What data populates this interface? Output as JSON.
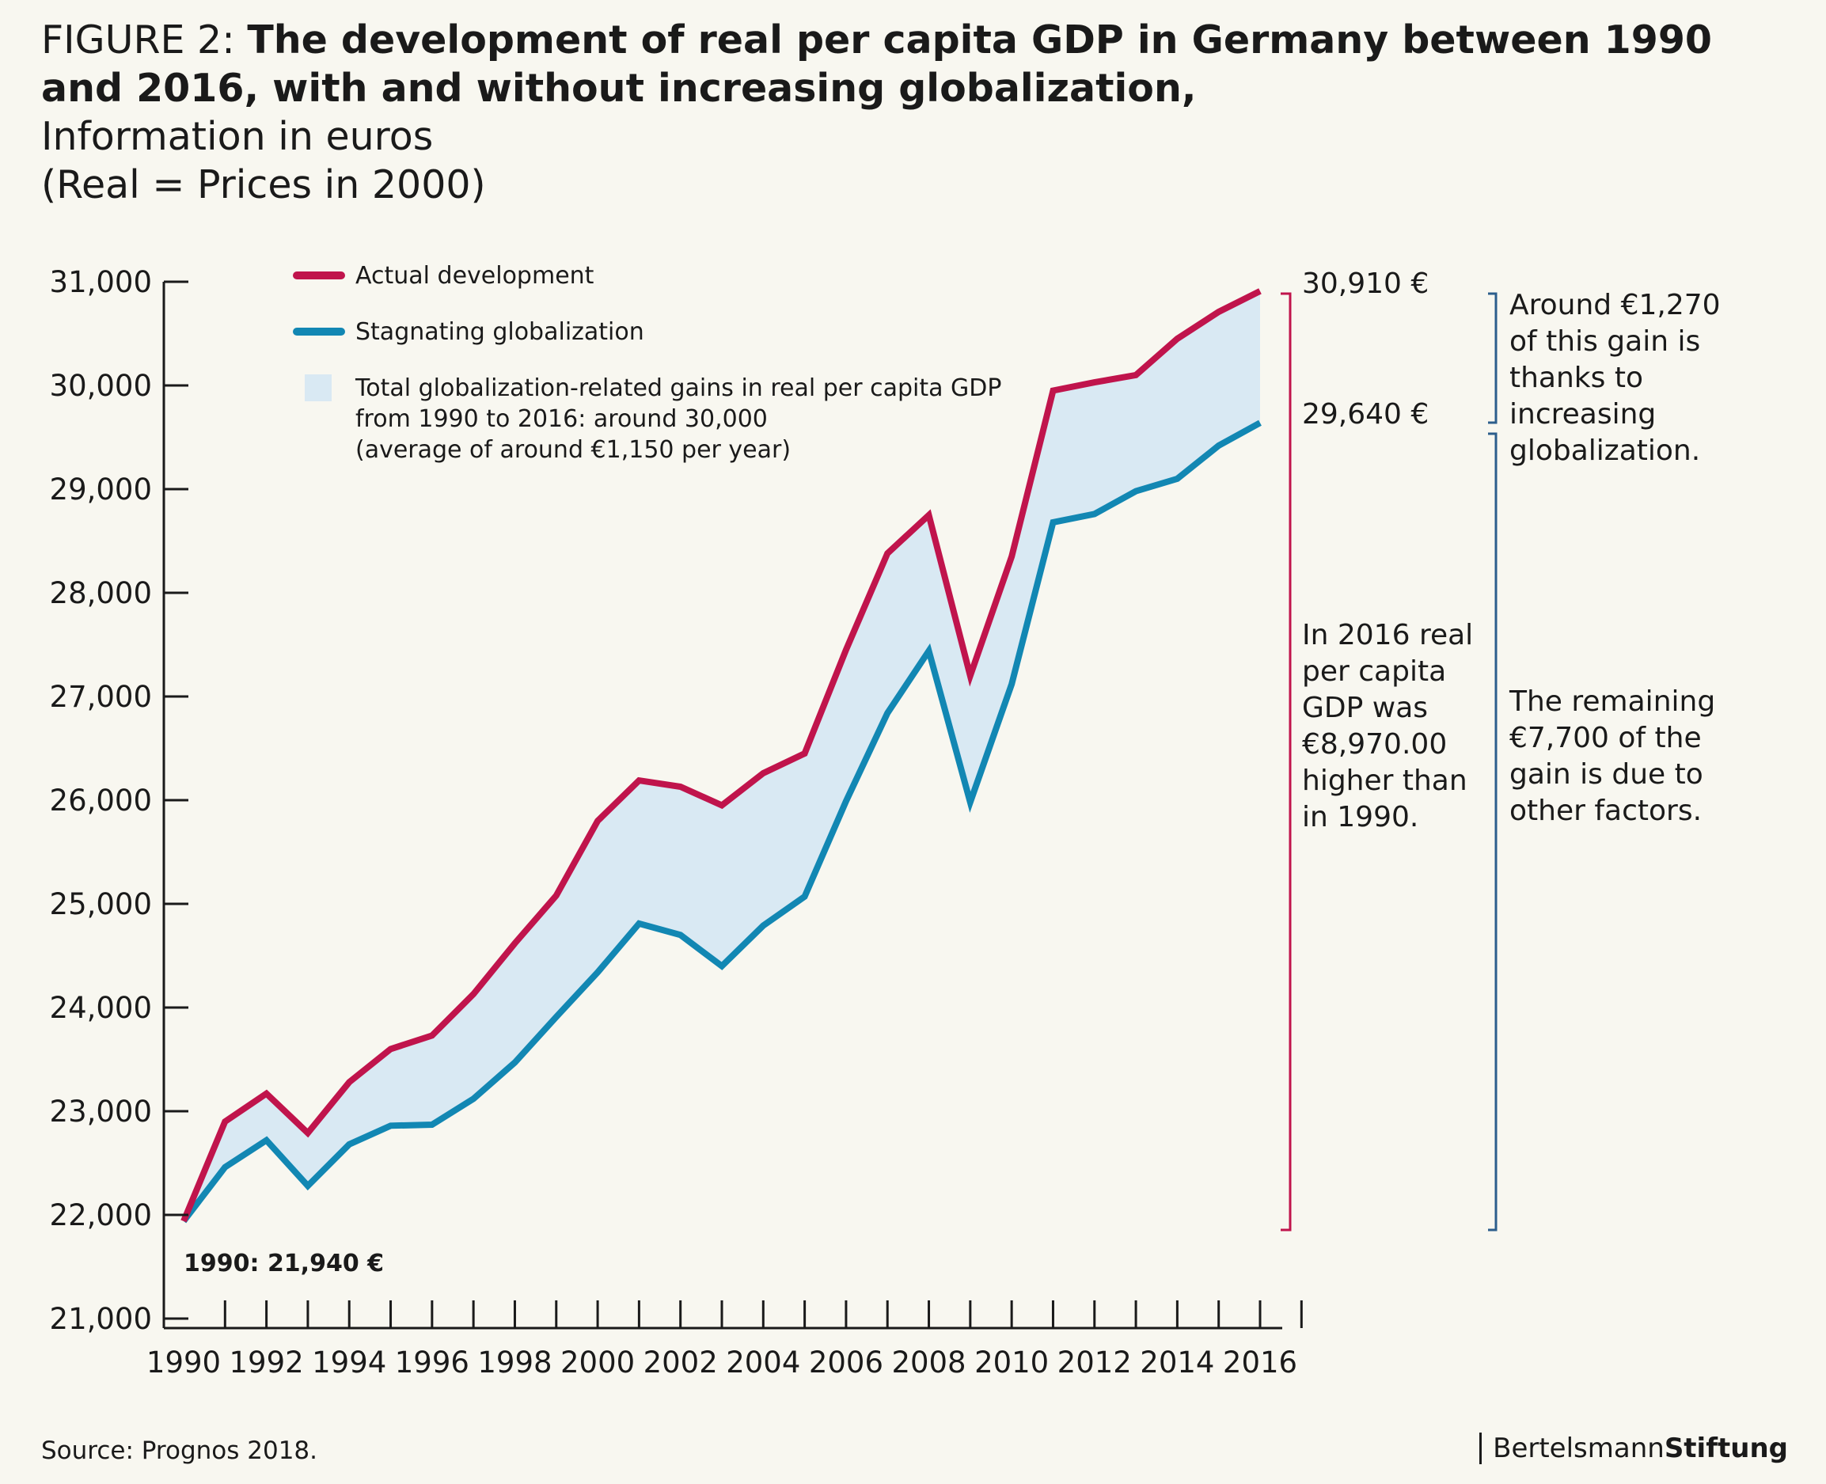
{
  "title": {
    "prefix": "FIGURE 2: ",
    "main": "The development of real per capita GDP in Germany between 1990 and 2016, with and without increasing globalization,",
    "sub1": "Information in euros",
    "sub2": "(Real = Prices in 2000)"
  },
  "colors": {
    "actual": "#c0144c",
    "stagnating": "#1287b3",
    "fill": "#d9e9f3",
    "bracket_blue": "#2c5e8c"
  },
  "legend": {
    "actual": "Actual development",
    "stagnating": "Stagnating globalization",
    "area_lines": [
      "Total globalization-related gains in real per capita GDP",
      "from 1990 to 2016: around 30,000",
      "(average of around €1,150 per year)"
    ]
  },
  "chart_data": {
    "type": "line",
    "x": [
      1990,
      1991,
      1992,
      1993,
      1994,
      1995,
      1996,
      1997,
      1998,
      1999,
      2000,
      2001,
      2002,
      2003,
      2004,
      2005,
      2006,
      2007,
      2008,
      2009,
      2010,
      2011,
      2012,
      2013,
      2014,
      2015,
      2016
    ],
    "series": [
      {
        "name": "Actual development",
        "values": [
          21940,
          22900,
          23170,
          22790,
          23280,
          23600,
          23730,
          24130,
          24620,
          25080,
          25800,
          26190,
          26130,
          25950,
          26260,
          26450,
          27450,
          28380,
          28750,
          27200,
          28350,
          29950,
          30030,
          30100,
          30450,
          30710,
          30910
        ]
      },
      {
        "name": "Stagnating globalization",
        "values": [
          21940,
          22460,
          22720,
          22280,
          22680,
          22860,
          22870,
          23120,
          23470,
          23910,
          24340,
          24810,
          24700,
          24400,
          24790,
          25070,
          25990,
          26840,
          27440,
          25980,
          27120,
          28680,
          28760,
          28980,
          29100,
          29420,
          29640
        ]
      }
    ],
    "area": "Total globalization-related gains in real per capita GDP",
    "ylim": [
      21000,
      31000
    ],
    "yticks": [
      21000,
      22000,
      23000,
      24000,
      25000,
      26000,
      27000,
      28000,
      29000,
      30000,
      31000
    ],
    "ytick_labels": [
      "21,000",
      "22,000",
      "23,000",
      "24,000",
      "25,000",
      "26,000",
      "27,000",
      "28,000",
      "29,000",
      "30,000",
      "31,000"
    ],
    "xtick_labels": [
      "1990",
      "1992",
      "1994",
      "1996",
      "1998",
      "2000",
      "2002",
      "2004",
      "2006",
      "2008",
      "2010",
      "2012",
      "2014",
      "2016"
    ],
    "annotations": {
      "start": "1990: 21,940 €",
      "end_actual": "30,910 €",
      "end_stagnating": "29,640 €",
      "diff_text": [
        "In 2016 real",
        "per capita",
        "GDP was",
        "€8,970.00",
        "higher than",
        "in 1990."
      ],
      "glob_gain": [
        "Around €1,270",
        "of this gain is",
        "thanks to",
        "increasing",
        "globalization."
      ],
      "other_gain": [
        "The remaining",
        "€7,700 of the",
        "gain is due to",
        "other factors."
      ]
    }
  },
  "source": "Source: Prognos 2018.",
  "brand": {
    "part1": "Bertelsmann",
    "part2": "Stiftung"
  }
}
